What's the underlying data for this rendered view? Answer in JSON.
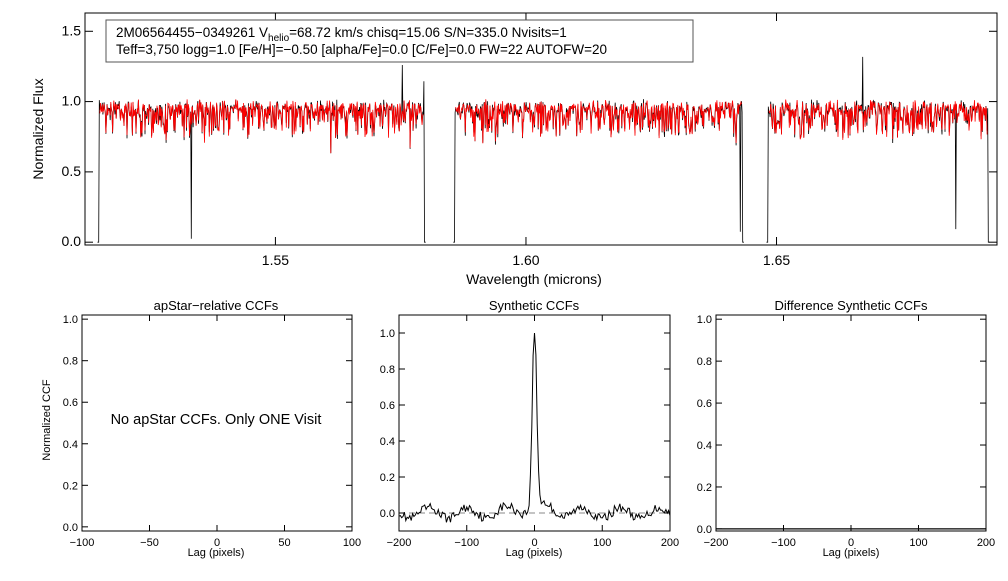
{
  "chart_data": [
    {
      "type": "line",
      "id": "spectrum",
      "xlabel": "Wavelength (microns)",
      "ylabel": "Normalized Flux",
      "xlim": [
        1.512,
        1.694
      ],
      "ylim": [
        -0.02,
        1.63
      ],
      "xticks": [
        1.55,
        1.6,
        1.65
      ],
      "xtick_labels": [
        "1.55",
        "1.60",
        "1.65"
      ],
      "yticks": [
        0.0,
        0.5,
        1.0,
        1.5
      ],
      "ytick_labels": [
        "0.0",
        "0.5",
        "1.0",
        "1.5"
      ],
      "annotation": {
        "line1_a": "2M06564455−0349261  V",
        "line1_sub": "helio",
        "line1_b": "=68.72 km/s  chisq=15.06  S/N=335.0  Nvisits=1",
        "line2": "Teff=3,750 logg=1.0 [Fe/H]=−0.50 [alpha/Fe]=0.0 [C/Fe]=0.0 FW=22 AUTOFW=20"
      },
      "chips": [
        [
          1.5145,
          1.58
        ],
        [
          1.5855,
          1.6435
        ],
        [
          1.648,
          1.6925
        ]
      ],
      "series": [
        {
          "role": "observed",
          "color": "#000000"
        },
        {
          "role": "model",
          "color": "#ff0000"
        }
      ]
    },
    {
      "type": "line",
      "id": "apstar-ccf",
      "title": "apStar−relative CCFs",
      "ylabel": "Normalized CCF",
      "xlabel": "Lag (pixels)",
      "xlim": [
        -100,
        100
      ],
      "ylim": [
        -0.02,
        1.02
      ],
      "xticks": [
        -100,
        -50,
        0,
        50,
        100
      ],
      "xtick_labels": [
        "−100",
        "−50",
        "0",
        "50",
        "100"
      ],
      "yticks": [
        0.0,
        0.2,
        0.4,
        0.6,
        0.8,
        1.0
      ],
      "ytick_labels": [
        "0.0",
        "0.2",
        "0.4",
        "0.6",
        "0.8",
        "1.0"
      ],
      "message": "No apStar CCFs.  Only ONE Visit"
    },
    {
      "type": "line",
      "id": "synthetic-ccf",
      "title": "Synthetic CCFs",
      "xlabel": "Lag (pixels)",
      "xlim": [
        -200,
        200
      ],
      "ylim": [
        -0.1,
        1.1
      ],
      "xticks": [
        -200,
        -100,
        0,
        100,
        200
      ],
      "xtick_labels": [
        "−200",
        "−100",
        "0",
        "100",
        "200"
      ],
      "yticks": [
        0.0,
        0.2,
        0.4,
        0.6,
        0.8,
        1.0
      ],
      "ytick_labels": [
        "0.0",
        "0.2",
        "0.4",
        "0.6",
        "0.8",
        "1.0"
      ],
      "peak": {
        "lag": 0,
        "value": 1.0
      },
      "baseline": 0.0
    },
    {
      "type": "line",
      "id": "difference-ccf",
      "title": "Difference Synthetic CCFs",
      "xlabel": "Lag (pixels)",
      "xlim": [
        -200,
        200
      ],
      "ylim": [
        -0.01,
        1.02
      ],
      "xticks": [
        -200,
        -100,
        0,
        100,
        200
      ],
      "xtick_labels": [
        "−200",
        "−100",
        "0",
        "100",
        "200"
      ],
      "yticks": [
        0.0,
        0.2,
        0.4,
        0.6,
        0.8,
        1.0
      ],
      "ytick_labels": [
        "0.0",
        "0.2",
        "0.4",
        "0.6",
        "0.8",
        "1.0"
      ],
      "baseline": 0.0
    }
  ]
}
